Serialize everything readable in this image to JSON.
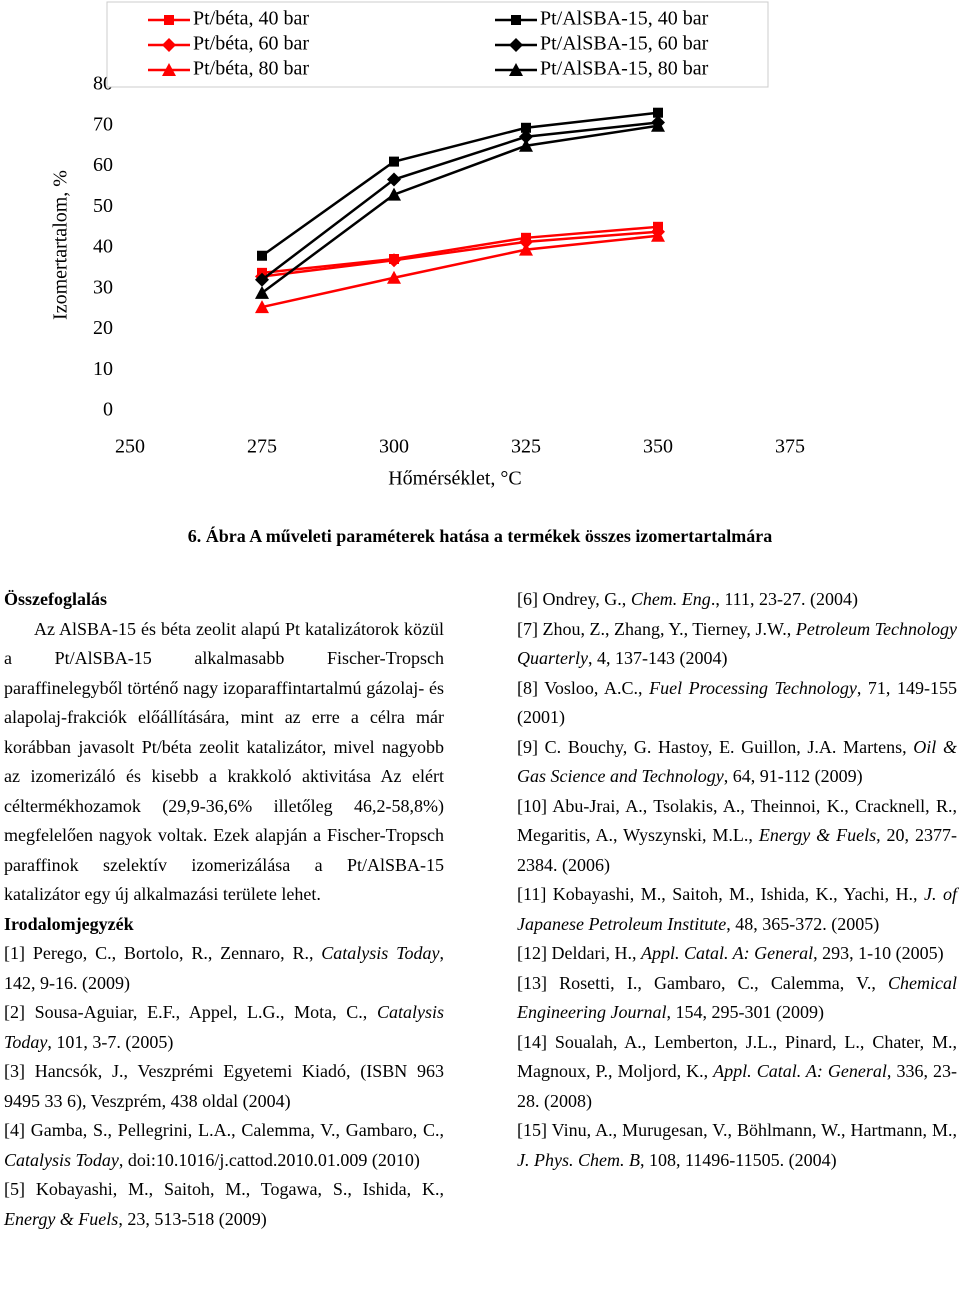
{
  "chart_data": {
    "type": "line",
    "x": [
      275,
      300,
      325,
      350
    ],
    "series": [
      {
        "name": "Pt/béta, 40 bar",
        "color": "#ff0000",
        "marker": "square",
        "values": [
          33.9,
          37.3,
          42.5,
          45.2
        ]
      },
      {
        "name": "Pt/béta, 60 bar",
        "color": "#ff0000",
        "marker": "diamond",
        "values": [
          33,
          37,
          41.5,
          44
        ]
      },
      {
        "name": "Pt/béta, 80 bar",
        "color": "#ff0000",
        "marker": "triangle",
        "values": [
          25.5,
          32.7,
          39.6,
          43
        ]
      },
      {
        "name": "Pt/AlSBA-15, 40 bar",
        "color": "#000000",
        "marker": "square",
        "values": [
          38.1,
          61.2,
          69.5,
          73.2
        ]
      },
      {
        "name": "Pt/AlSBA-15, 60 bar",
        "color": "#000000",
        "marker": "diamond",
        "values": [
          32.2,
          56.8,
          67.3,
          70.8
        ]
      },
      {
        "name": "Pt/AlSBA-15, 80 bar",
        "color": "#000000",
        "marker": "triangle",
        "values": [
          29,
          53.1,
          65.1,
          70
        ]
      }
    ],
    "xlim": [
      250,
      375
    ],
    "xticks": [
      250,
      275,
      300,
      325,
      350,
      375
    ],
    "ylim": [
      0,
      80
    ],
    "yticks": [
      0,
      10,
      20,
      30,
      40,
      50,
      60,
      70,
      80
    ],
    "xlabel": "Hőmérséklet, °C",
    "ylabel": "Izomertartalom, %",
    "legend": "top"
  },
  "caption": "6. Ábra A műveleti paraméterek hatása a termékek összes izomertartalmára",
  "summary": {
    "title": "Összefoglalás",
    "text": "Az AlSBA-15 és béta zeolit alapú Pt katalizátorok közül a Pt/AlSBA-15 alkalmasabb Fischer-Tropsch paraffinelegyből történő nagy izoparaffintartalmú gázolaj- és alapolaj-frakciók előállítására, mint az erre a célra már korábban javasolt Pt/béta zeolit katalizátor, mivel nagyobb az izomerizáló és kisebb a krakkoló aktivitása Az elért céltermékhozamok (29,9-36,6% illetőleg 46,2-58,8%) megfelelően nagyok voltak. Ezek alapján a Fischer-Tropsch paraffinok szelektív izomerizálása a Pt/AlSBA-15 katalizátor egy új alkalmazási területe lehet."
  },
  "references": {
    "title": "Irodalomjegyzék",
    "items": [
      [
        "[1] Perego, C., Bortolo, R., Zennaro, R., ",
        "Catalysis Today",
        ", 142, 9-16. (2009)"
      ],
      [
        "[2] Sousa-Aguiar, E.F., Appel, L.G., Mota, C., ",
        "Catalysis Today",
        ", 101, 3-7. (2005)"
      ],
      [
        "[3] Hancsók, J., Veszprémi Egyetemi Kiadó, (ISBN 963 9495 33 6), Veszprém, 438 oldal (2004)"
      ],
      [
        "[4] Gamba, S., Pellegrini, L.A., Calemma, V., Gambaro, C., ",
        "Catalysis Today",
        ", doi:10.1016/j.cattod.2010.01.009 (2010)"
      ],
      [
        "[5] Kobayashi, M., Saitoh, M., Togawa, S., Ishida, K., ",
        "Energy & Fuels",
        ", 23, 513-518 (2009)"
      ],
      [
        "[6] Ondrey, G., ",
        "Chem. Eng",
        "., 111, 23-27. (2004)"
      ],
      [
        "[7] Zhou, Z., Zhang, Y., Tierney, J.W., ",
        "Petroleum Technology Quarterly",
        ", 4, 137-143 (2004)"
      ],
      [
        "[8] Vosloo, A.C., ",
        "Fuel Processing Technology",
        ", 71, 149-155 (2001)"
      ],
      [
        "[9] C. Bouchy, G. Hastoy, E. Guillon, J.A. Martens, ",
        "Oil & Gas Science and Technology",
        ", 64, 91-112 (2009)"
      ],
      [
        "[10] Abu-Jrai, A., Tsolakis, A., Theinnoi, K., Cracknell, R., Megaritis, A., Wyszynski, M.L., ",
        "Energy & Fuels",
        ", 20, 2377-2384. (2006)"
      ],
      [
        "[11] Kobayashi, M., Saitoh, M., Ishida, K., Yachi, H., ",
        "J. of Japanese Petroleum Institute",
        ", 48, 365-372. (2005)"
      ],
      [
        "[12] Deldari, H., ",
        "Appl. Catal. A: General",
        ", 293, 1-10 (2005)"
      ],
      [
        "[13] Rosetti, I., Gambaro, C., Calemma, V., ",
        "Chemical Engineering Journal",
        ", 154, 295-301 (2009)"
      ],
      [
        "[14] Soualah, A., Lemberton, J.L., Pinard, L., Chater, M., Magnoux, P., Moljord, K., ",
        "Appl. Catal. A: General",
        ", 336, 23-28. (2008)"
      ],
      [
        "[15] Vinu, A., Murugesan, V., Böhlmann, W., Hartmann, M., ",
        "J. Phys. Chem. B",
        ", 108, 11496-11505. (2004)"
      ]
    ]
  }
}
